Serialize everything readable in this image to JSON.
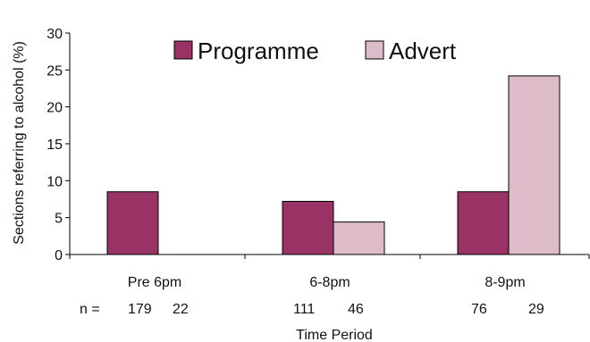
{
  "chart_data": {
    "type": "bar",
    "categories": [
      "Pre 6pm",
      "6-8pm",
      "8-9pm"
    ],
    "series": [
      {
        "name": "Programme",
        "values": [
          8.5,
          7.2,
          8.5
        ],
        "color": "#993366"
      },
      {
        "name": "Advert",
        "values": [
          null,
          4.4,
          24.2
        ],
        "color": "#DDBBC8"
      }
    ],
    "n_prefix": "n =",
    "n_values": [
      [
        "179",
        "22"
      ],
      [
        "111",
        "46"
      ],
      [
        "76",
        "29"
      ]
    ],
    "xlabel": "Time Period",
    "ylabel": "Sections referring to alcohol (%)",
    "ylim": [
      0,
      30
    ],
    "yticks": [
      0,
      5,
      10,
      15,
      20,
      25,
      30
    ],
    "legend_position": "top",
    "grid": false
  }
}
